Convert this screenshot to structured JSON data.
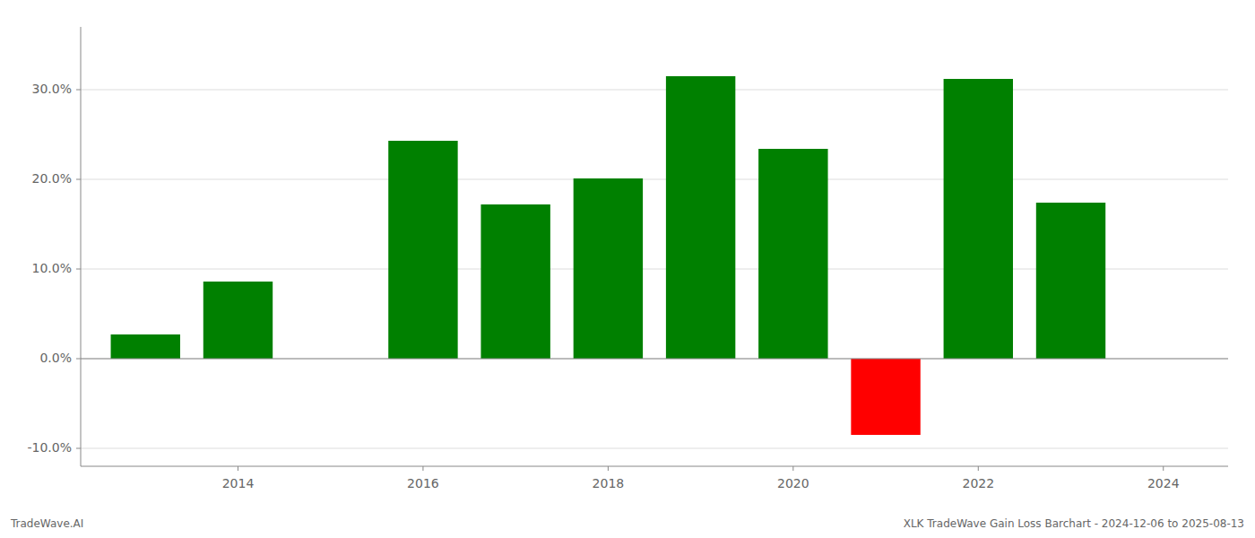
{
  "chart_data": {
    "type": "bar",
    "x": [
      2013,
      2014,
      2016,
      2017,
      2018,
      2019,
      2020,
      2021,
      2022,
      2023
    ],
    "values": [
      0.027,
      0.086,
      0.243,
      0.172,
      0.201,
      0.315,
      0.234,
      -0.085,
      0.312,
      0.174
    ],
    "colors": [
      "#008000",
      "#008000",
      "#008000",
      "#008000",
      "#008000",
      "#008000",
      "#008000",
      "#ff0000",
      "#008000",
      "#008000"
    ],
    "xlim": [
      2012.3,
      2024.7
    ],
    "ylim": [
      -0.12,
      0.37
    ],
    "xticks": [
      2014,
      2016,
      2018,
      2020,
      2022,
      2024
    ],
    "yticks": [
      {
        "value": -0.1,
        "label": "-10.0%"
      },
      {
        "value": 0.0,
        "label": "0.0%"
      },
      {
        "value": 0.1,
        "label": "10.0%"
      },
      {
        "value": 0.2,
        "label": "20.0%"
      },
      {
        "value": 0.3,
        "label": "30.0%"
      }
    ],
    "grid": true,
    "annotations": [
      "TradeWave.AI",
      "XLK TradeWave Gain Loss Barchart - 2024-12-06 to 2025-08-13"
    ]
  }
}
